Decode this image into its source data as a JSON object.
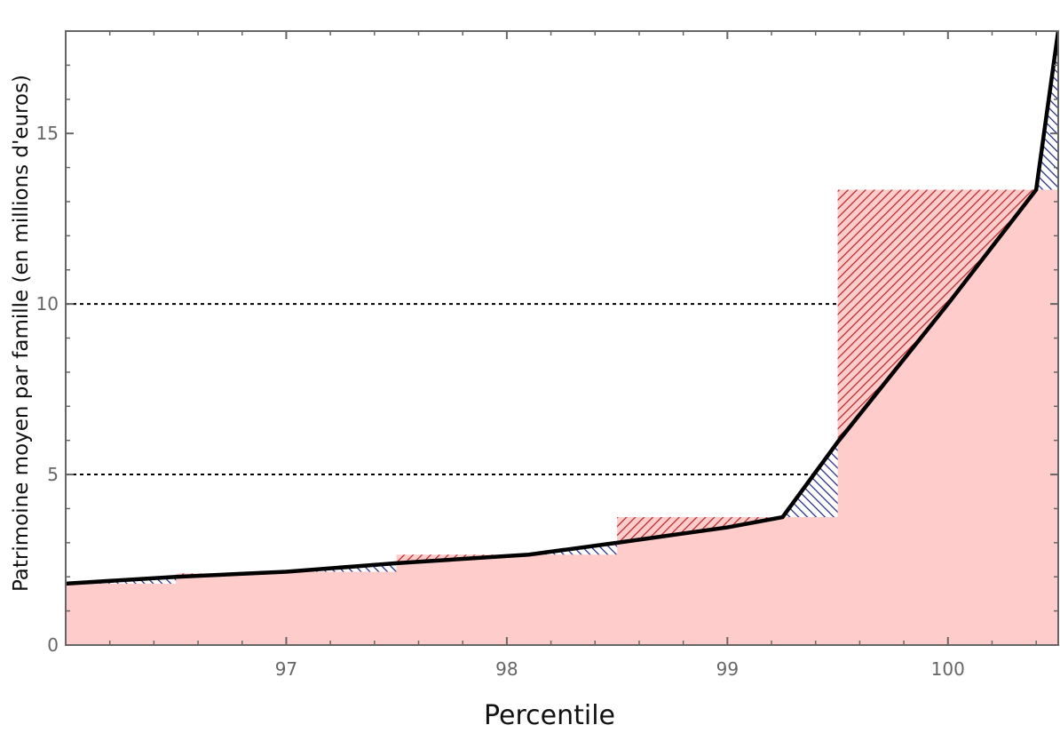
{
  "chart_data": {
    "type": "area",
    "title": "",
    "xlabel": "Percentile",
    "ylabel": "Patrimoine moyen par famille (en millions d'euros)",
    "xlim": [
      96.0,
      100.5
    ],
    "ylim": [
      0,
      18
    ],
    "x_ticks": [
      97,
      98,
      99,
      100
    ],
    "y_ticks": [
      0,
      5,
      10,
      15
    ],
    "reference_lines_y": [
      5,
      10
    ],
    "grid": false,
    "colors": {
      "fill": "#ffcccc",
      "curve": "#000000",
      "excess_hatch": "#b22222",
      "deficit_hatch": "#1a237e",
      "frame": "#666666"
    },
    "curve": {
      "x": [
        96.0,
        96.5,
        97.0,
        97.5,
        98.1,
        98.5,
        99.0,
        99.25,
        99.5,
        100.0,
        100.4,
        100.5
      ],
      "y": [
        1.8,
        2.0,
        2.15,
        2.4,
        2.65,
        3.0,
        3.45,
        3.75,
        5.95,
        10.0,
        13.35,
        18.0
      ]
    },
    "bins": [
      {
        "x0": 96.0,
        "x1": 96.5,
        "value": 1.8
      },
      {
        "x0": 96.5,
        "x1": 97.0,
        "value": 2.1
      },
      {
        "x0": 97.0,
        "x1": 97.5,
        "value": 2.15
      },
      {
        "x0": 97.5,
        "x1": 98.0,
        "value": 2.65
      },
      {
        "x0": 98.0,
        "x1": 98.5,
        "value": 2.65
      },
      {
        "x0": 98.5,
        "x1": 99.0,
        "value": 3.75
      },
      {
        "x0": 99.0,
        "x1": 99.5,
        "value": 3.75
      },
      {
        "x0": 99.5,
        "x1": 100.4,
        "value": 13.35
      },
      {
        "x0": 100.4,
        "x1": 100.5,
        "value": 13.35
      }
    ]
  }
}
